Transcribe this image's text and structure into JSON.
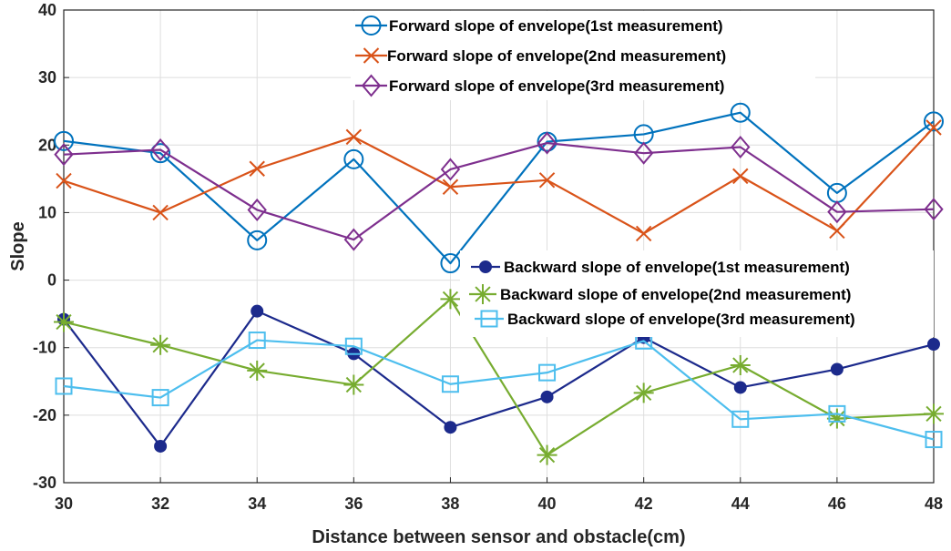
{
  "chart_data": {
    "type": "line",
    "xlabel": "Distance between sensor and obstacle(cm)",
    "ylabel": "Slope",
    "x": [
      30,
      32,
      34,
      36,
      38,
      40,
      42,
      44,
      46,
      48
    ],
    "xlim": [
      30,
      48
    ],
    "ylim": [
      -30,
      40
    ],
    "xticks": [
      "30",
      "32",
      "34",
      "36",
      "38",
      "40",
      "42",
      "44",
      "46",
      "48"
    ],
    "yticks": [
      "40",
      "30",
      "20",
      "10",
      "0",
      "-10",
      "-20",
      "-30"
    ],
    "grid": true,
    "legends": [
      "top-center",
      "center-right"
    ],
    "series": [
      {
        "name": "Forward slope of envelope(1st measurement)",
        "marker": "circle-open",
        "color": "#0072bd",
        "values": [
          20.6,
          18.8,
          5.9,
          17.9,
          2.5,
          20.5,
          21.6,
          24.8,
          12.9,
          23.5
        ]
      },
      {
        "name": "Forward slope of envelope(2nd measurement)",
        "marker": "x",
        "color": "#d95319",
        "values": [
          14.7,
          10.0,
          16.5,
          21.2,
          13.8,
          14.8,
          6.9,
          15.4,
          7.3,
          22.6
        ]
      },
      {
        "name": "Forward slope of envelope(3rd measurement)",
        "marker": "diamond-open",
        "color": "#7e2f8e",
        "values": [
          18.6,
          19.3,
          10.4,
          6.0,
          16.4,
          20.3,
          18.8,
          19.7,
          10.1,
          10.5
        ]
      },
      {
        "name": "Backward slope of envelope(1st measurement)",
        "marker": "circle-filled",
        "color": "#1c2a8c",
        "values": [
          -5.8,
          -24.6,
          -4.6,
          -10.9,
          -21.8,
          -17.3,
          -8.5,
          -15.9,
          -13.2,
          -9.5
        ]
      },
      {
        "name": "Backward slope of envelope(2nd measurement)",
        "marker": "asterisk",
        "color": "#77ac30",
        "values": [
          -6.2,
          -9.6,
          -13.4,
          -15.5,
          -2.8,
          -25.9,
          -16.7,
          -12.6,
          -20.5,
          -19.8
        ]
      },
      {
        "name": "Backward slope of envelope(3rd measurement)",
        "marker": "square-open",
        "color": "#4dbeee",
        "values": [
          -15.7,
          -17.4,
          -8.9,
          -9.8,
          -15.4,
          -13.7,
          -9.0,
          -20.6,
          -19.8,
          -23.6
        ]
      }
    ]
  }
}
